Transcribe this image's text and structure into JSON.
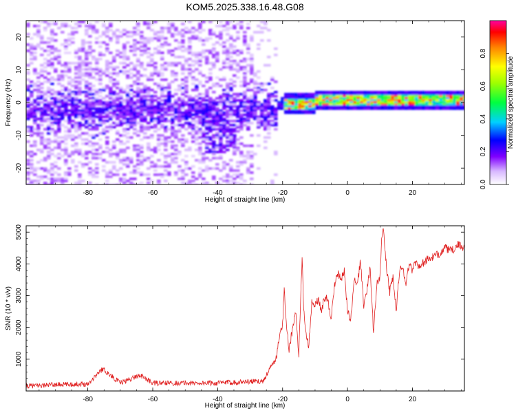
{
  "chart_data": [
    {
      "type": "heatmap",
      "title": "KOM5.2025.338.16.48.G08",
      "xlabel": "Height of straight line (km)",
      "ylabel": "Frequency (Hz)",
      "xlim": [
        -99,
        36
      ],
      "ylim": [
        -25,
        25
      ],
      "x_ticks": [
        -80,
        -60,
        -40,
        -20,
        0,
        20
      ],
      "y_ticks": [
        -20,
        -10,
        0,
        10,
        20
      ],
      "colorbar": {
        "label": "Normalized spectral amplitude",
        "range": [
          0.0,
          1.0
        ],
        "ticks": [
          "0.0",
          "0.2",
          "0.4",
          "0.6",
          "0.8"
        ],
        "colors": [
          "#ffffff",
          "#c080ff",
          "#7000ff",
          "#0000ff",
          "#00e0ff",
          "#00ff40",
          "#ffff00",
          "#ff8000",
          "#ff0000",
          "#ff00a0"
        ]
      },
      "features": [
        {
          "description": "scattered low-amplitude noise",
          "x_range": [
            -99,
            -22
          ],
          "freq_range": [
            -25,
            25
          ],
          "amplitude": 0.1
        },
        {
          "description": "strong narrow carrier",
          "x_range": [
            -20,
            36
          ],
          "center_freq": 1,
          "amplitude": 0.95
        }
      ]
    },
    {
      "type": "line",
      "xlabel": "Height of straight line (km)",
      "ylabel": "SNR (10 * v/v)",
      "xlim": [
        -99,
        36
      ],
      "ylim": [
        0,
        5200
      ],
      "x_ticks": [
        -80,
        -60,
        -40,
        -20,
        0,
        20
      ],
      "y_ticks": [
        1000,
        2000,
        3000,
        4000,
        5000
      ],
      "color": "#e02020",
      "series": [
        {
          "name": "SNR",
          "x": [
            -99,
            -90,
            -80,
            -75.5,
            -70,
            -64,
            -60,
            -50,
            -40,
            -30,
            -26,
            -24,
            -22,
            -21,
            -20,
            -19.5,
            -19,
            -18,
            -17,
            -16,
            -15,
            -14,
            -13.5,
            -13,
            -12,
            -11,
            -10,
            -9,
            -8,
            -7,
            -6,
            -5,
            -4,
            -3,
            -2,
            -1,
            0,
            1,
            2,
            3,
            4,
            5,
            6,
            7,
            8,
            9,
            10,
            10.5,
            11,
            12,
            13,
            14,
            15,
            16,
            17,
            18,
            19,
            20,
            21,
            22,
            24,
            26,
            28,
            30,
            32,
            34,
            36
          ],
          "values": [
            150,
            200,
            220,
            700,
            250,
            500,
            250,
            250,
            250,
            300,
            300,
            700,
            1000,
            1700,
            2100,
            3300,
            2300,
            1300,
            1900,
            2500,
            1100,
            4200,
            2600,
            2000,
            1400,
            2800,
            2700,
            2900,
            2500,
            3000,
            2800,
            2300,
            3300,
            3700,
            3500,
            3800,
            2500,
            2200,
            3500,
            3300,
            4100,
            2700,
            3200,
            3900,
            1800,
            3400,
            3600,
            4700,
            5100,
            3900,
            3100,
            3600,
            2500,
            3800,
            3900,
            3400,
            4000,
            3800,
            4100,
            3900,
            4100,
            4200,
            4300,
            4500,
            4400,
            4600,
            4500
          ]
        }
      ]
    }
  ]
}
